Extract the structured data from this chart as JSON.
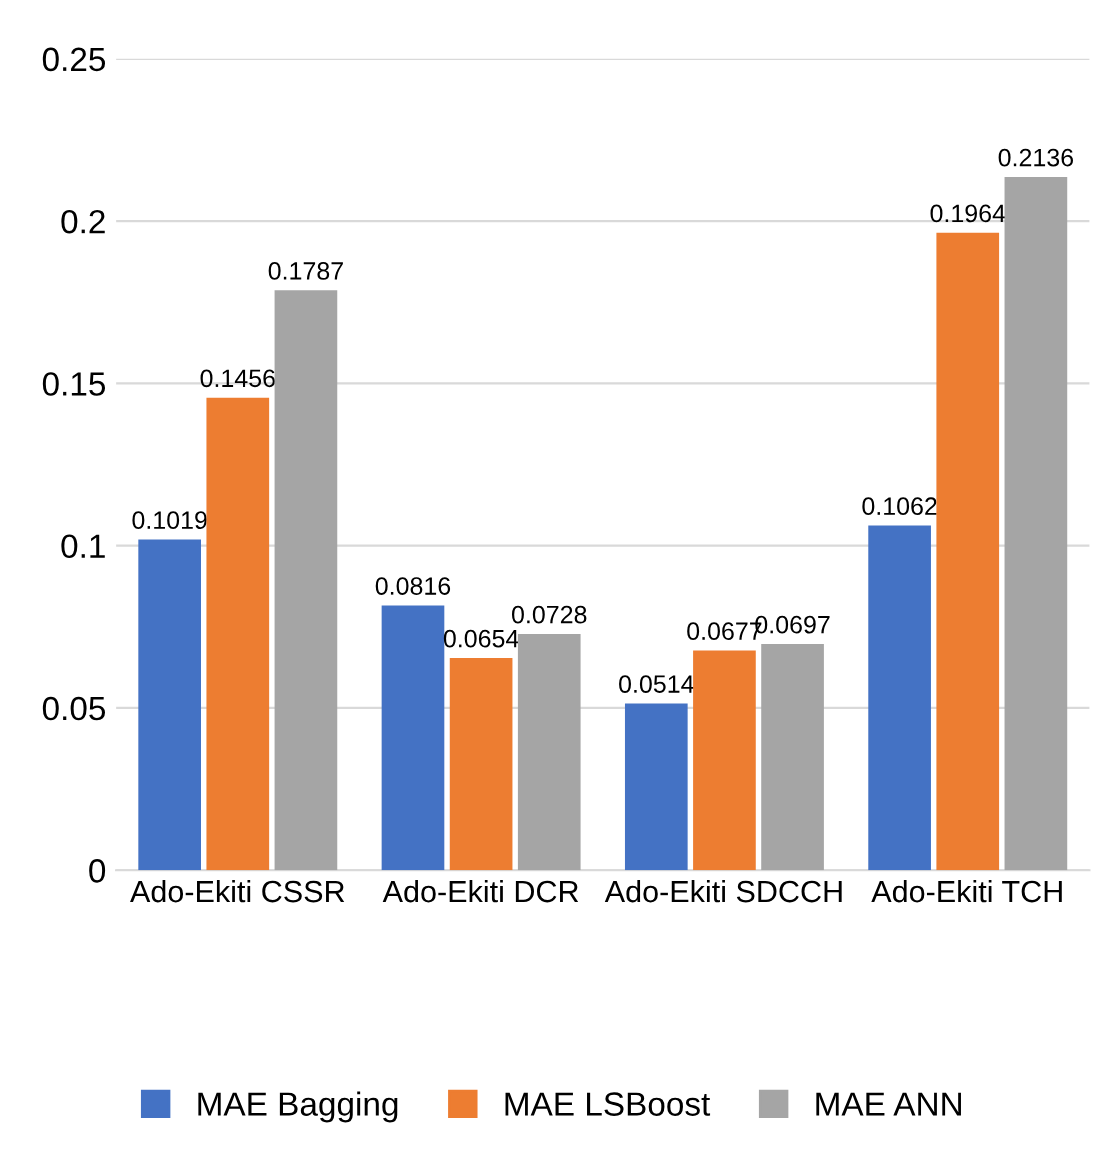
{
  "chart_data": {
    "type": "bar",
    "categories": [
      "Ado-Ekiti CSSR",
      "Ado-Ekiti DCR",
      "Ado-Ekiti SDCCH",
      "Ado-Ekiti TCH"
    ],
    "series": [
      {
        "name": "MAE Bagging",
        "color": "#4472c4",
        "values": [
          0.1019,
          0.0816,
          0.0514,
          0.1062
        ]
      },
      {
        "name": "MAE LSBoost",
        "color": "#ed7d31",
        "values": [
          0.1456,
          0.0654,
          0.0677,
          0.1964
        ]
      },
      {
        "name": "MAE ANN",
        "color": "#a5a5a5",
        "values": [
          0.1787,
          0.0728,
          0.0697,
          0.2136
        ]
      }
    ],
    "ylim": [
      0,
      0.25
    ],
    "yticks": [
      0,
      0.05,
      0.1,
      0.15,
      0.2,
      0.25
    ],
    "grid": "y",
    "legend": "bottom",
    "data_labels": true
  }
}
